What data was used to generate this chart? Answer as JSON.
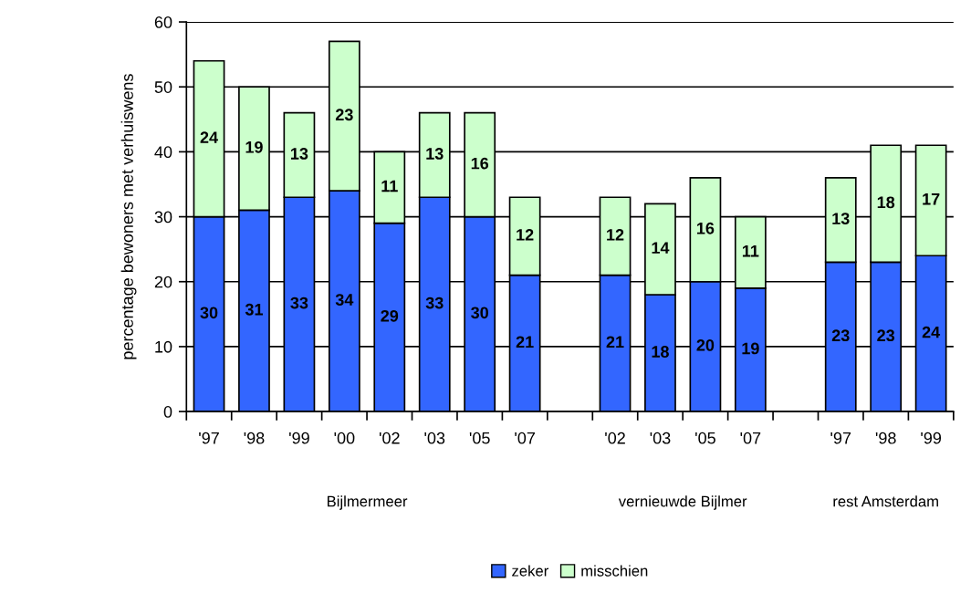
{
  "chart_data": {
    "type": "bar",
    "stacked": true,
    "ylabel": "percentage bewoners met verhuiswens",
    "categories": [
      "'97",
      "'98",
      "'99",
      "'00",
      "'02",
      "'03",
      "'05",
      "'07",
      null,
      "'02",
      "'03",
      "'05",
      "'07",
      null,
      "'97",
      "'98",
      "'99"
    ],
    "series": [
      {
        "name": "zeker",
        "color": "#3366ff",
        "values": [
          30,
          31,
          33,
          34,
          29,
          33,
          30,
          21,
          null,
          21,
          18,
          20,
          19,
          null,
          23,
          23,
          24
        ]
      },
      {
        "name": "misschien",
        "color": "#ccffcc",
        "values": [
          24,
          19,
          13,
          23,
          11,
          13,
          16,
          12,
          null,
          12,
          14,
          16,
          11,
          null,
          13,
          18,
          17
        ]
      }
    ],
    "ylim": [
      0,
      60
    ],
    "yticks": [
      0,
      10,
      20,
      30,
      40,
      50,
      60
    ],
    "grid": "y",
    "legend": "bottom",
    "data_labels": true,
    "annotations": [
      "Bijlmermeer",
      "vernieuwde Bijlmer",
      "rest Amsterdam"
    ]
  }
}
